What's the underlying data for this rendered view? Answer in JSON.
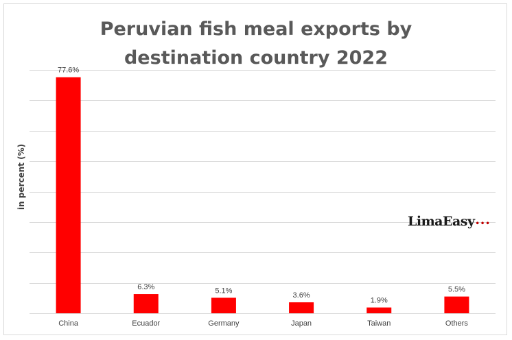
{
  "chart_data": {
    "type": "bar",
    "title_lines": [
      "Peruvian fish meal exports by",
      "destination country 2022"
    ],
    "title": "Peruvian fish meal exports by destination country 2022",
    "ylabel": "in percent (%)",
    "xlabel": "",
    "categories": [
      "China",
      "Ecuador",
      "Germany",
      "Japan",
      "Taiwan",
      "Others"
    ],
    "values": [
      77.6,
      6.3,
      5.1,
      3.6,
      1.9,
      5.5
    ],
    "data_labels": [
      "77.6%",
      "6.3%",
      "5.1%",
      "3.6%",
      "1.9%",
      "5.5%"
    ],
    "ylim": [
      0,
      80
    ],
    "y_gridline_step": 10,
    "grid": true,
    "y_tick_labels_shown": false,
    "legend": "none",
    "bar_color": "#ff0000",
    "grid_color": "#d9d9d9"
  },
  "watermark": {
    "text": "LimaEasy",
    "dots": "•••",
    "dot_color": "#c00000"
  }
}
